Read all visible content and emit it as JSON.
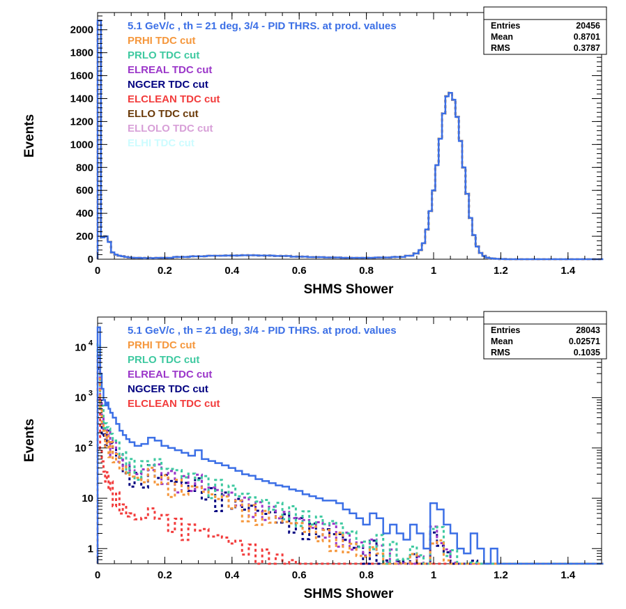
{
  "chart_data": [
    {
      "type": "histogram",
      "title": "",
      "xlabel": "SHMS Shower",
      "ylabel": "Events",
      "xlim": [
        0,
        1.5
      ],
      "ylim": [
        0,
        2150
      ],
      "log_y": false,
      "x_ticks": [
        0,
        0.2,
        0.4,
        0.6,
        0.8,
        1,
        1.2,
        1.4
      ],
      "x_tick_labels": [
        "0",
        "0.2",
        "0.4",
        "0.6",
        "0.8",
        "1",
        "1.2",
        "1.4"
      ],
      "y_ticks": [
        0,
        200,
        400,
        600,
        800,
        1000,
        1200,
        1400,
        1600,
        1800,
        2000
      ],
      "y_tick_labels": [
        "0",
        "200",
        "400",
        "600",
        "800",
        "1000",
        "1200",
        "1400",
        "1600",
        "1800",
        "2000"
      ],
      "stats": {
        "header": "",
        "rows": [
          {
            "label": "Entries",
            "value": "20456"
          },
          {
            "label": "Mean",
            "value": "0.8701"
          },
          {
            "label": "RMS",
            "value": "0.3787"
          }
        ]
      },
      "legend": [
        {
          "text": "5.1 GeV/c , th = 21 deg, 3/4 - PID THRS. at prod. values",
          "color": "#3b6fe6"
        },
        {
          "text": "PRHI TDC cut",
          "color": "#f5973c"
        },
        {
          "text": "PRLO TDC cut",
          "color": "#3ec9a0"
        },
        {
          "text": "ELREAL TDC cut",
          "color": "#9b36c9"
        },
        {
          "text": "NGCER TDC cut",
          "color": "#000080"
        },
        {
          "text": "ELCLEAN TDC cut",
          "color": "#f23c3c"
        },
        {
          "text": "ELLO TDC cut",
          "color": "#6b3b0a"
        },
        {
          "text": "ELLOLO TDC cut",
          "color": "#d8a0d8"
        },
        {
          "text": "ELHI TDC cut",
          "color": "#cdfcff"
        }
      ],
      "series": [
        {
          "name": "5.1 GeV/c , th = 21 deg, 3/4 - PID THRS. at prod. values",
          "color": "#3b6fe6",
          "style": "solid",
          "x": [
            0.005,
            0.015,
            0.025,
            0.035,
            0.045,
            0.055,
            0.065,
            0.075,
            0.085,
            0.095,
            0.11,
            0.15,
            0.2,
            0.25,
            0.3,
            0.35,
            0.4,
            0.45,
            0.5,
            0.55,
            0.6,
            0.65,
            0.7,
            0.75,
            0.8,
            0.85,
            0.9,
            0.93,
            0.95,
            0.96,
            0.97,
            0.98,
            0.99,
            1.0,
            1.01,
            1.02,
            1.03,
            1.04,
            1.05,
            1.06,
            1.07,
            1.08,
            1.09,
            1.1,
            1.11,
            1.12,
            1.13,
            1.14,
            1.15,
            1.16,
            1.17,
            1.18,
            1.19,
            1.2,
            1.21,
            1.22,
            1.25,
            1.3,
            1.4,
            1.5
          ],
          "y": [
            2080,
            190,
            200,
            150,
            60,
            40,
            30,
            25,
            20,
            15,
            12,
            10,
            12,
            20,
            25,
            30,
            32,
            34,
            32,
            28,
            22,
            18,
            15,
            12,
            12,
            15,
            20,
            30,
            50,
            80,
            140,
            260,
            420,
            600,
            820,
            1050,
            1270,
            1420,
            1450,
            1390,
            1240,
            1030,
            800,
            570,
            360,
            210,
            110,
            55,
            28,
            14,
            8,
            5,
            3,
            2,
            1,
            0,
            0,
            0,
            0,
            0
          ]
        },
        {
          "name": "PRHI TDC cut",
          "color": "#f5973c",
          "style": "dashed",
          "same_as": 0
        },
        {
          "name": "PRLO TDC cut",
          "color": "#3ec9a0",
          "style": "dashed",
          "same_as": 0
        },
        {
          "name": "ELREAL TDC cut",
          "color": "#9b36c9",
          "style": "dashed",
          "same_as": 0
        },
        {
          "name": "NGCER TDC cut",
          "color": "#000080",
          "style": "dashed",
          "same_as": 0
        }
      ]
    },
    {
      "type": "histogram",
      "title": "",
      "xlabel": "SHMS Shower",
      "ylabel": "Events",
      "xlim": [
        0,
        1.5
      ],
      "ylim": [
        0.5,
        40000
      ],
      "log_y": true,
      "x_ticks": [
        0,
        0.2,
        0.4,
        0.6,
        0.8,
        1,
        1.2,
        1.4
      ],
      "x_tick_labels": [
        "0",
        "0.2",
        "0.4",
        "0.6",
        "0.8",
        "1",
        "1.2",
        "1.4"
      ],
      "y_ticks": [
        1,
        10,
        100,
        1000,
        10000
      ],
      "y_tick_labels": [
        {
          "base": "1",
          "exp": ""
        },
        {
          "base": "10",
          "exp": ""
        },
        {
          "base": "10",
          "exp": "2"
        },
        {
          "base": "10",
          "exp": "3"
        },
        {
          "base": "10",
          "exp": "4"
        }
      ],
      "stats": {
        "header": "",
        "rows": [
          {
            "label": "Entries",
            "value": "28043"
          },
          {
            "label": "Mean",
            "value": "0.02571"
          },
          {
            "label": "RMS",
            "value": "0.1035"
          }
        ]
      },
      "legend": [
        {
          "text": "5.1 GeV/c , th = 21 deg, 3/4 - PID THRS. at prod. values",
          "color": "#3b6fe6"
        },
        {
          "text": "PRHI TDC cut",
          "color": "#f5973c"
        },
        {
          "text": "PRLO TDC cut",
          "color": "#3ec9a0"
        },
        {
          "text": "ELREAL TDC cut",
          "color": "#9b36c9"
        },
        {
          "text": "NGCER TDC cut",
          "color": "#000080"
        },
        {
          "text": "ELCLEAN TDC cut",
          "color": "#f23c3c"
        }
      ],
      "series": [
        {
          "name": "5.1 GeV/c , th = 21 deg, 3/4 - PID THRS. at prod. values",
          "color": "#3b6fe6",
          "style": "solid",
          "x": [
            0.005,
            0.01,
            0.015,
            0.02,
            0.025,
            0.03,
            0.035,
            0.04,
            0.05,
            0.06,
            0.07,
            0.08,
            0.09,
            0.1,
            0.12,
            0.14,
            0.16,
            0.18,
            0.2,
            0.22,
            0.24,
            0.26,
            0.28,
            0.3,
            0.32,
            0.34,
            0.36,
            0.38,
            0.4,
            0.42,
            0.44,
            0.46,
            0.48,
            0.5,
            0.52,
            0.54,
            0.56,
            0.58,
            0.6,
            0.62,
            0.64,
            0.66,
            0.68,
            0.7,
            0.72,
            0.74,
            0.76,
            0.78,
            0.8,
            0.82,
            0.84,
            0.86,
            0.88,
            0.9,
            0.92,
            0.94,
            0.96,
            0.98,
            1.0,
            1.02,
            1.04,
            1.06,
            1.08,
            1.1,
            1.12,
            1.14,
            1.16,
            1.18,
            1.2,
            1.25,
            1.3,
            1.4,
            1.5
          ],
          "y": [
            25000,
            3000,
            1500,
            900,
            700,
            800,
            600,
            500,
            400,
            300,
            220,
            180,
            150,
            130,
            110,
            120,
            160,
            140,
            110,
            100,
            90,
            80,
            70,
            90,
            60,
            55,
            50,
            45,
            40,
            35,
            30,
            28,
            24,
            22,
            20,
            18,
            17,
            15,
            14,
            12,
            11,
            10,
            9,
            9,
            8,
            6,
            5,
            4,
            3,
            5,
            4,
            2,
            3,
            2,
            1.5,
            3,
            2,
            1,
            8,
            6,
            3,
            2,
            1,
            0.8,
            2,
            1,
            0.5,
            1,
            0.5,
            0,
            0,
            0,
            0
          ]
        },
        {
          "name": "PRHI TDC cut",
          "color": "#f5973c",
          "style": "dashed",
          "scale": 0.18
        },
        {
          "name": "PRLO TDC cut",
          "color": "#3ec9a0",
          "style": "dashed",
          "scale": 0.32
        },
        {
          "name": "ELREAL TDC cut",
          "color": "#9b36c9",
          "style": "dashed",
          "scale": 0.24
        },
        {
          "name": "NGCER TDC cut",
          "color": "#000080",
          "style": "dashed",
          "scale": 0.2
        },
        {
          "name": "ELCLEAN TDC cut",
          "color": "#f23c3c",
          "style": "dashed",
          "scale": 0.03
        }
      ]
    }
  ]
}
